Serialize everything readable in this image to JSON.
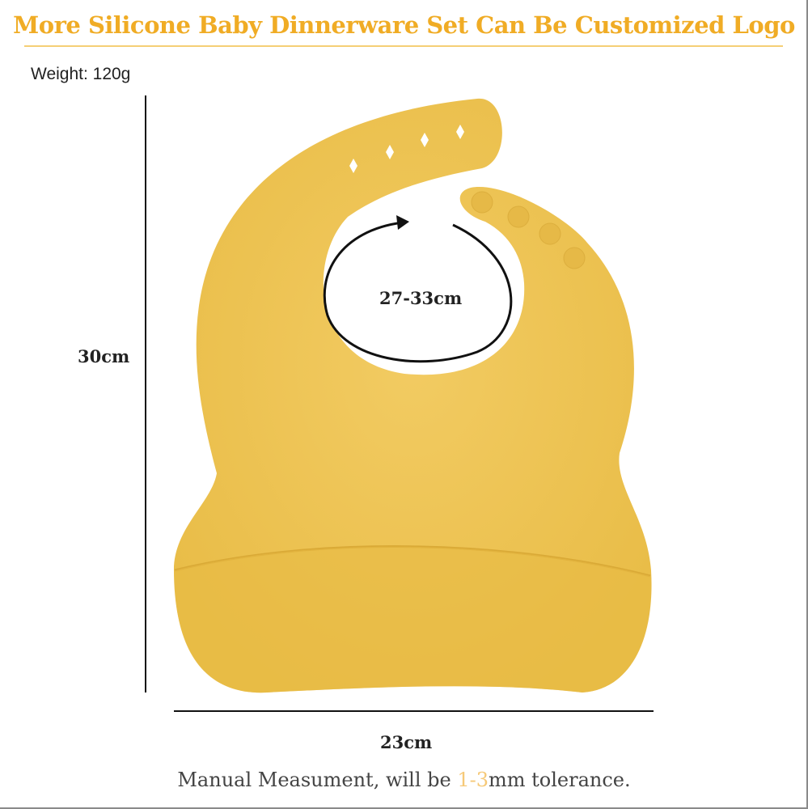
{
  "title": "More Silicone Baby Dinnerware Set Can Be Customized Logo",
  "weight": "Weight: 120g",
  "dimensions": {
    "height": "30cm",
    "width": "23cm",
    "neck": "27-33cm"
  },
  "footer": {
    "before": "Manual Measument, will be ",
    "highlight": "1-3",
    "after": "mm tolerance."
  },
  "colors": {
    "accent": "#f0ac25",
    "bib": "#efc65a",
    "highlight": "#f6c978"
  }
}
